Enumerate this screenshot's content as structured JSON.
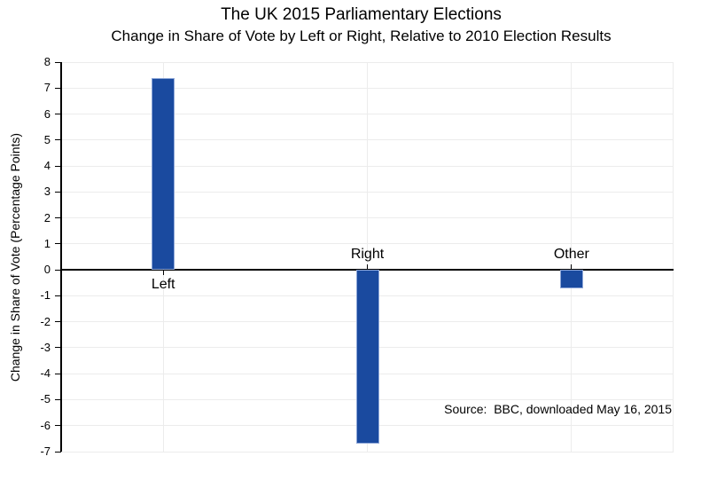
{
  "chart_data": {
    "type": "bar",
    "title": "The UK 2015 Parliamentary Elections",
    "subtitle": "Change in Share of Vote by Left or Right, Relative to 2010 Election Results",
    "categories": [
      "Left",
      "Right",
      "Other"
    ],
    "values": [
      7.4,
      -6.7,
      -0.7
    ],
    "xlabel": "",
    "ylabel": "Change in Share of Vote (Percentage Points)",
    "ylim": [
      -7,
      8
    ],
    "ytick_step": 1,
    "grid": true,
    "legend_position": "none",
    "source_note": "Source:  BBC, downloaded May 16, 2015",
    "bar_color": "#1a4a9f",
    "bar_border_color": "#8ea7d8",
    "gridline_color": "#ececec",
    "axis_color": "#000000",
    "background_color": "#ffffff"
  }
}
